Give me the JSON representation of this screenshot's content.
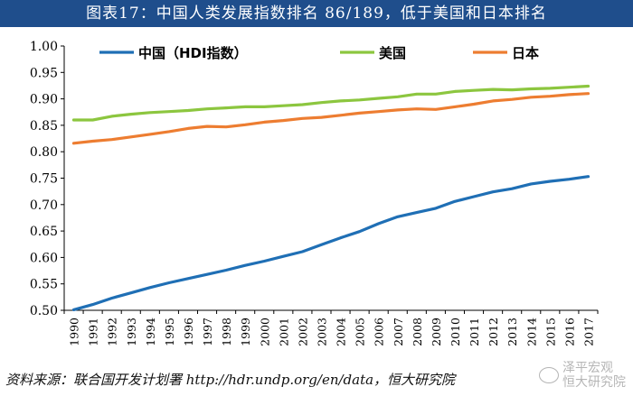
{
  "title": "图表17：中国人类发展指数排名 86/189，低于美国和日本排名",
  "source": "资料来源：联合国开发计划署 http://hdr.undp.org/en/data，恒大研究院",
  "watermark": {
    "line1": "泽平宏观",
    "line2": "恒大研究院"
  },
  "colors": {
    "title_bg": "#1f4e8c",
    "china": "#1f6fb5",
    "usa": "#8cc63f",
    "japan": "#ed7d31"
  },
  "chart_data": {
    "type": "line",
    "title": "图表17：中国人类发展指数排名 86/189，低于美国和日本排名",
    "xlabel": "",
    "ylabel": "",
    "x": [
      "1990",
      "1991",
      "1992",
      "1993",
      "1994",
      "1995",
      "1996",
      "1997",
      "1998",
      "1999",
      "2000",
      "2001",
      "2002",
      "2003",
      "2004",
      "2005",
      "2006",
      "2007",
      "2008",
      "2009",
      "2010",
      "2011",
      "2012",
      "2013",
      "2014",
      "2015",
      "2016",
      "2017"
    ],
    "ylim": [
      0.5,
      1.0
    ],
    "yticks": [
      "0.50",
      "0.55",
      "0.60",
      "0.65",
      "0.70",
      "0.75",
      "0.80",
      "0.85",
      "0.90",
      "0.95",
      "1.00"
    ],
    "legend_position": "top",
    "grid": false,
    "series": [
      {
        "name": "中国（HDI指数）",
        "color": "#1f6fb5",
        "values": [
          0.501,
          0.511,
          0.523,
          0.533,
          0.543,
          0.552,
          0.56,
          0.568,
          0.576,
          0.585,
          0.593,
          0.602,
          0.611,
          0.624,
          0.637,
          0.649,
          0.664,
          0.677,
          0.685,
          0.693,
          0.706,
          0.715,
          0.724,
          0.73,
          0.739,
          0.744,
          0.748,
          0.753
        ]
      },
      {
        "name": "美国",
        "color": "#8cc63f",
        "values": [
          0.86,
          0.86,
          0.867,
          0.871,
          0.874,
          0.876,
          0.878,
          0.881,
          0.883,
          0.885,
          0.885,
          0.887,
          0.889,
          0.893,
          0.896,
          0.898,
          0.901,
          0.904,
          0.909,
          0.909,
          0.914,
          0.916,
          0.918,
          0.917,
          0.919,
          0.92,
          0.922,
          0.924
        ]
      },
      {
        "name": "日本",
        "color": "#ed7d31",
        "values": [
          0.816,
          0.82,
          0.823,
          0.828,
          0.833,
          0.838,
          0.844,
          0.848,
          0.847,
          0.851,
          0.856,
          0.859,
          0.863,
          0.865,
          0.869,
          0.873,
          0.876,
          0.879,
          0.881,
          0.88,
          0.885,
          0.89,
          0.896,
          0.899,
          0.903,
          0.905,
          0.908,
          0.91
        ]
      }
    ]
  }
}
